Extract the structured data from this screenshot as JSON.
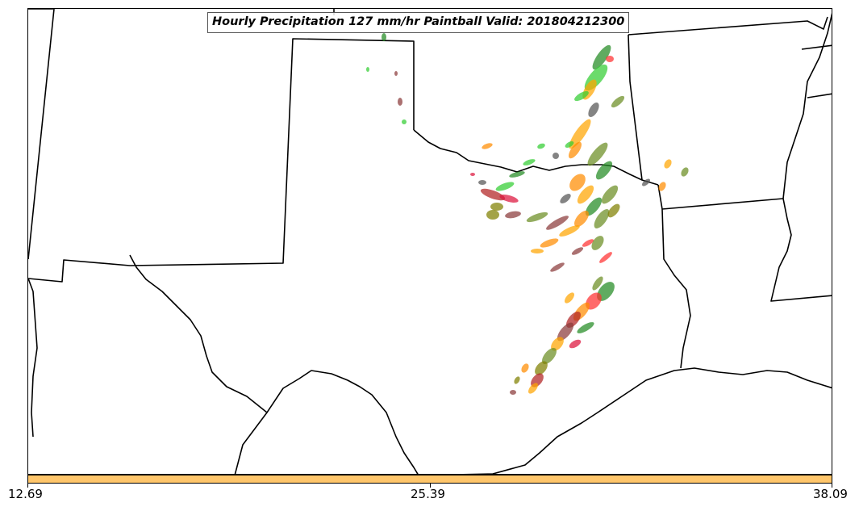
{
  "title": "Hourly Precipitation 127 mm/hr Paintball Valid: 201804212300",
  "colorbar": {
    "color": "#FFC66B",
    "ticks": [
      "12.69",
      "25.39",
      "38.09"
    ]
  },
  "paintball_colors": [
    "#228B22",
    "#32CD32",
    "#FF8C00",
    "#FFA500",
    "#DC143C",
    "#FF3030",
    "#8B3A3A",
    "#6B8E23",
    "#808000",
    "#555555",
    "#B22222"
  ]
}
